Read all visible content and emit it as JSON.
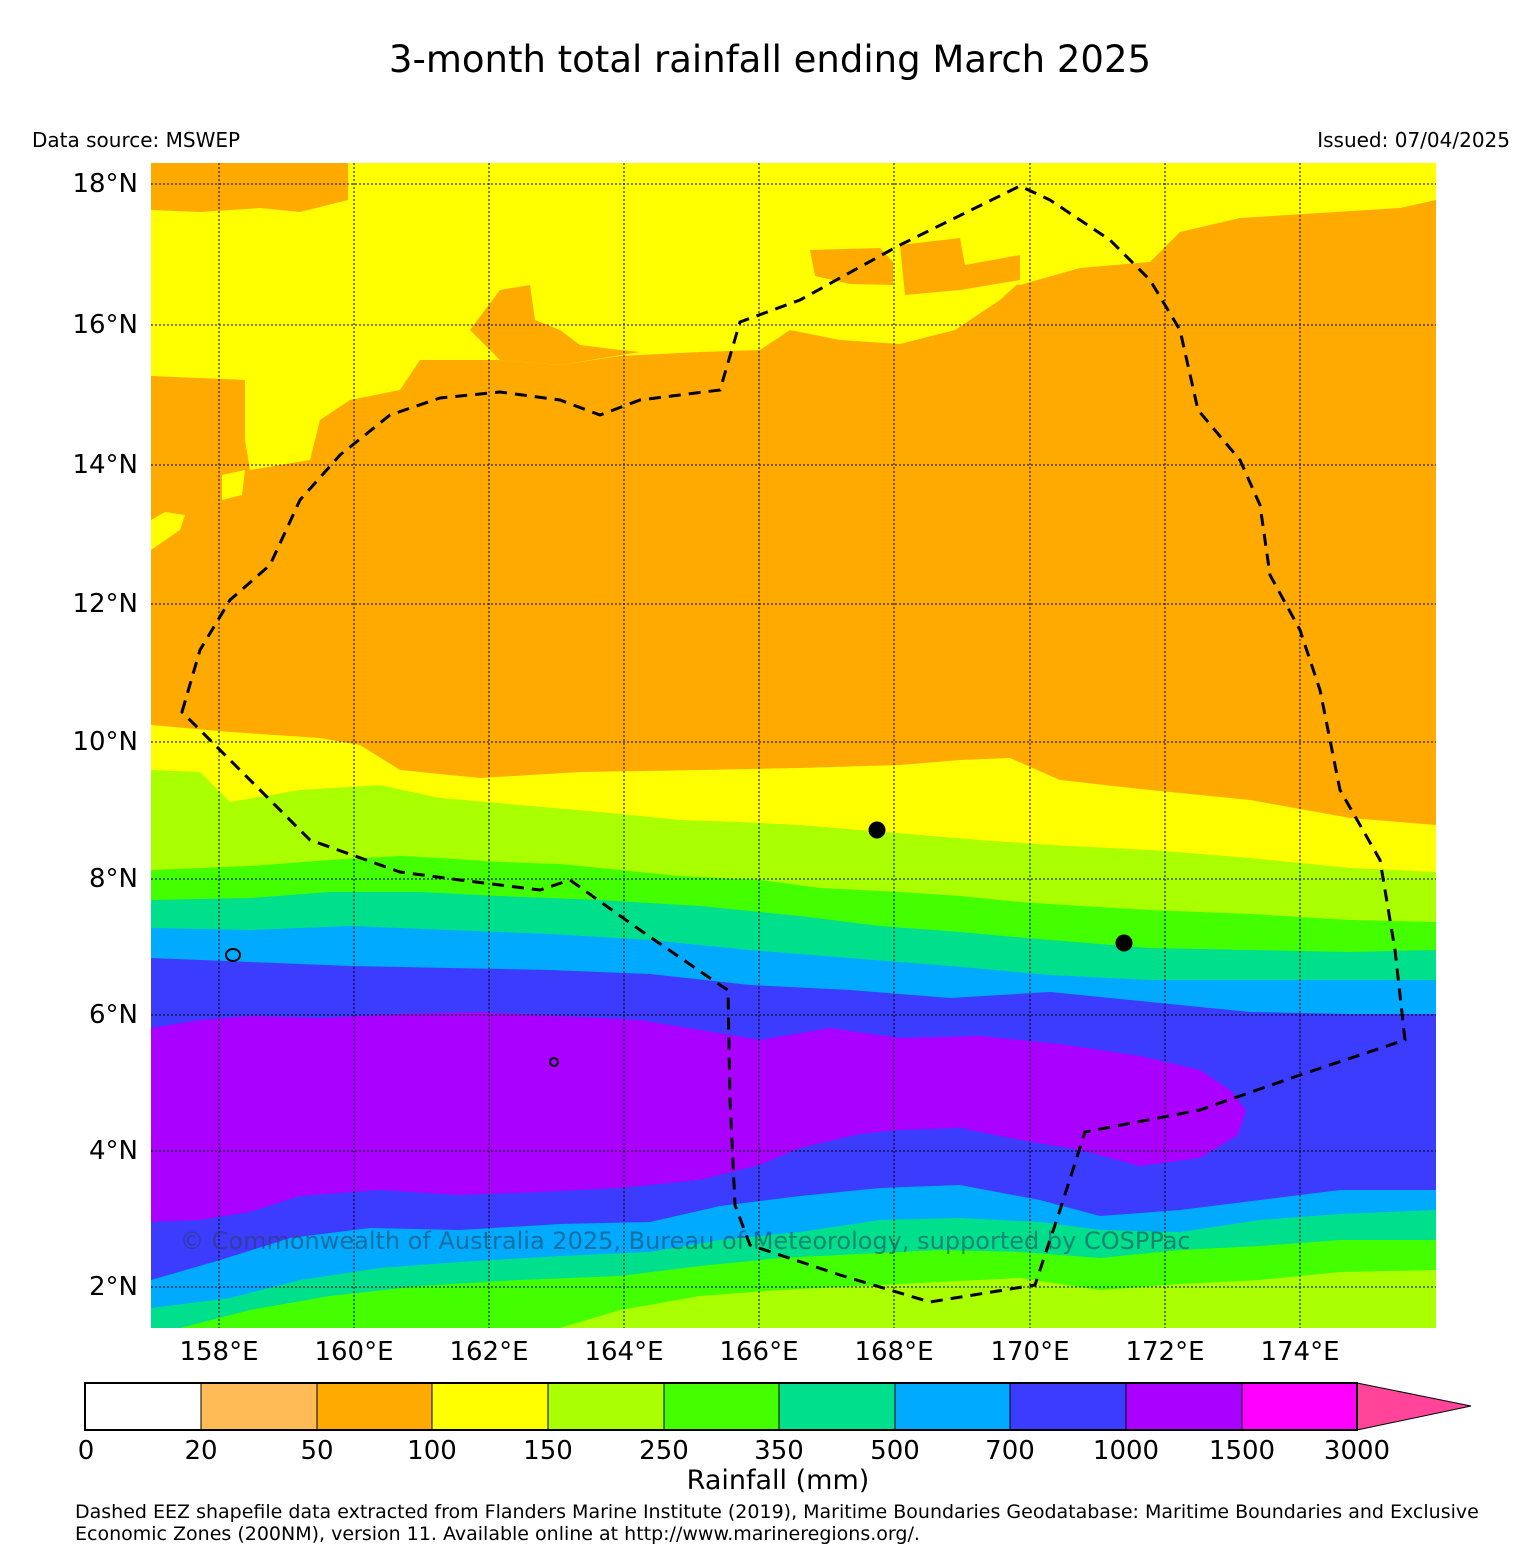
{
  "title": "3-month total rainfall ending March 2025",
  "data_source": "Data source: MSWEP",
  "issued": "Issued: 07/04/2025",
  "latitudes": [
    "18°N",
    "16°N",
    "14°N",
    "12°N",
    "10°N",
    "8°N",
    "6°N",
    "4°N",
    "2°N"
  ],
  "longitudes": [
    "158°E",
    "160°E",
    "162°E",
    "164°E",
    "166°E",
    "168°E",
    "170°E",
    "172°E",
    "174°E"
  ],
  "colorbar": {
    "title": "Rainfall (mm)",
    "labels": [
      "0",
      "20",
      "50",
      "100",
      "150",
      "250",
      "350",
      "500",
      "700",
      "1000",
      "1500",
      "3000"
    ],
    "colors": [
      "#ffffff",
      "#ffbb55",
      "#ffaa00",
      "#ffff00",
      "#aaff00",
      "#44ff00",
      "#00e08c",
      "#00aaff",
      "#3c3cff",
      "#aa00ff",
      "#ff00ff",
      "#ff4499"
    ]
  },
  "credit": "© Commonwealth of Australia 2025, Bureau of Meteorology, supported by COSPPac",
  "footnote": "Dashed EEZ shapefile data extracted from Flanders Marine Institute (2019), Maritime Boundaries Geodatabase: Maritime Boundaries and Exclusive Economic Zones (200NM), version 11. Available online at http://www.marineregions.org/.",
  "map": {
    "lon_range": [
      157,
      176
    ],
    "lat_range": [
      1.4,
      18.3
    ],
    "islands": [
      {
        "lon": 167.7,
        "lat": 8.7
      },
      {
        "lon": 171.3,
        "lat": 7.1
      }
    ]
  }
}
